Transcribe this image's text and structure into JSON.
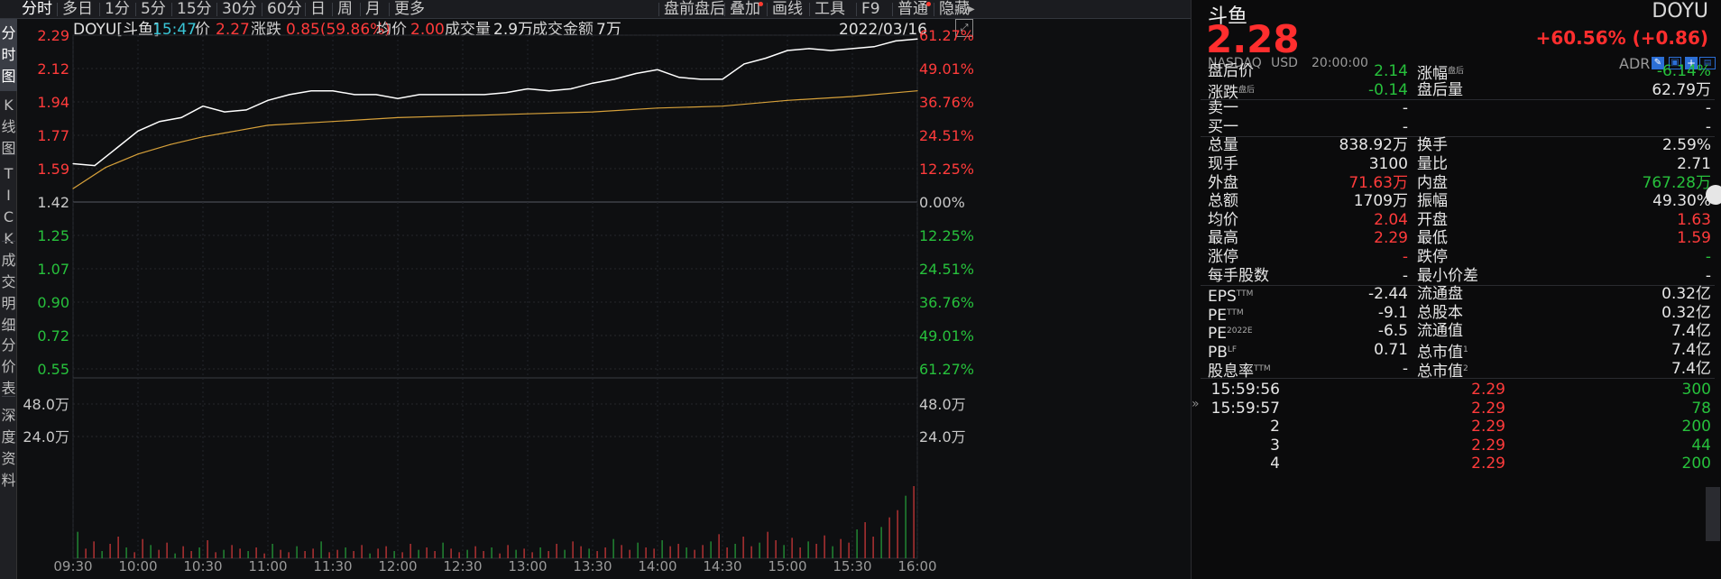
{
  "toolbar": {
    "tabs": [
      "分时",
      "多日",
      "1分",
      "5分",
      "15分",
      "30分",
      "60分",
      "日",
      "周",
      "月",
      "更多"
    ],
    "right_buttons": [
      "盘前盘后",
      "叠加",
      "画线",
      "工具",
      "F9",
      "普通",
      "隐藏"
    ]
  },
  "leftnav": {
    "groups": [
      {
        "label": "分\n时\n图",
        "active": true
      },
      {
        "label": "K\n线\n图",
        "active": false
      },
      {
        "label": "T\nI\nC\nK",
        "active": false
      },
      {
        "label": "成\n交\n明\n细",
        "active": false
      },
      {
        "label": "分\n价\n表",
        "active": false
      },
      {
        "label": "深\n度\n资\n料",
        "active": false
      }
    ]
  },
  "chart_header": {
    "symbol": "DOYU[斗鱼]",
    "time": "15:47",
    "price_label": "价",
    "price": "2.27",
    "change_label": "涨跌",
    "change": "0.85(59.86%)",
    "avg_label": "均价",
    "avg": "2.00",
    "volume_label": "成交量",
    "volume": "2.9万",
    "amount_label": "成交金额",
    "amount": "7万",
    "date": "2022/03/16"
  },
  "chart_data": {
    "type": "line",
    "price_axis_left": [
      "2.29",
      "2.12",
      "1.94",
      "1.77",
      "1.59",
      "1.42",
      "1.25",
      "1.07",
      "0.90",
      "0.72",
      "0.55"
    ],
    "pct_axis_right": [
      "61.27%",
      "49.01%",
      "36.76%",
      "24.51%",
      "12.25%",
      "0.00%",
      "12.25%",
      "24.51%",
      "36.76%",
      "49.01%",
      "61.27%"
    ],
    "volume_axis": [
      "48.0万",
      "24.0万"
    ],
    "x_ticks": [
      "09:30",
      "10:00",
      "10:30",
      "11:00",
      "11:30",
      "12:00",
      "12:30",
      "13:00",
      "13:30",
      "14:00",
      "14:30",
      "15:00",
      "15:30",
      "16:00"
    ],
    "ylim": [
      0.55,
      2.29
    ],
    "prev_close": 1.42,
    "series": [
      {
        "color": "#ffffff",
        "x": [
          "09:30",
          "09:40",
          "09:50",
          "10:00",
          "10:10",
          "10:20",
          "10:30",
          "10:40",
          "10:50",
          "11:00",
          "11:10",
          "11:20",
          "11:30",
          "11:40",
          "11:50",
          "12:00",
          "12:10",
          "12:20",
          "12:30",
          "12:40",
          "12:50",
          "13:00",
          "13:10",
          "13:20",
          "13:30",
          "13:40",
          "13:50",
          "14:00",
          "14:10",
          "14:20",
          "14:30",
          "14:40",
          "14:50",
          "15:00",
          "15:10",
          "15:20",
          "15:30",
          "15:40",
          "15:50",
          "16:00"
        ],
        "values": [
          1.62,
          1.61,
          1.7,
          1.79,
          1.84,
          1.86,
          1.92,
          1.89,
          1.9,
          1.95,
          1.98,
          2.0,
          2.0,
          1.98,
          1.98,
          1.96,
          1.98,
          1.98,
          1.98,
          1.98,
          1.99,
          2.01,
          2.0,
          2.01,
          2.04,
          2.06,
          2.09,
          2.11,
          2.07,
          2.06,
          2.06,
          2.14,
          2.17,
          2.21,
          2.22,
          2.21,
          2.22,
          2.23,
          2.26,
          2.27
        ]
      },
      {
        "color": "#d7a13a",
        "x": [
          "09:30",
          "09:45",
          "10:00",
          "10:15",
          "10:30",
          "10:45",
          "11:00",
          "11:30",
          "12:00",
          "12:30",
          "13:00",
          "13:30",
          "14:00",
          "14:30",
          "15:00",
          "15:30",
          "16:00"
        ],
        "values": [
          1.49,
          1.6,
          1.67,
          1.72,
          1.76,
          1.79,
          1.82,
          1.84,
          1.86,
          1.87,
          1.88,
          1.89,
          1.91,
          1.92,
          1.95,
          1.97,
          2.0
        ]
      }
    ],
    "volume_bars": [
      22,
      8,
      14,
      6,
      12,
      18,
      9,
      5,
      16,
      11,
      7,
      13,
      4,
      10,
      6,
      9,
      15,
      5,
      7,
      11,
      8,
      6,
      9,
      4,
      12,
      7,
      5,
      10,
      6,
      8,
      14,
      5,
      7,
      9,
      6,
      11,
      4,
      8,
      10,
      6,
      5,
      12,
      7,
      9,
      6,
      13,
      8,
      5,
      7,
      10,
      6,
      9,
      4,
      11,
      7,
      8,
      5,
      9,
      6,
      12,
      7,
      14,
      10,
      8,
      6,
      9,
      16,
      11,
      7,
      13,
      9,
      8,
      15,
      10,
      12,
      9,
      7,
      11,
      14,
      20,
      9,
      12,
      18,
      10,
      13,
      22,
      15,
      11,
      17,
      9,
      14,
      12,
      19,
      10,
      16,
      13,
      24,
      30,
      18,
      26,
      34,
      40,
      52,
      60
    ]
  },
  "quote": {
    "name": "斗鱼",
    "code": "DOYU",
    "price": "2.28",
    "change": "+60.56% (+0.86)",
    "exchange": "NASDAQ",
    "currency": "USD",
    "time": "20:00:00",
    "adr": "ADR"
  },
  "stats": [
    {
      "l1": "盘后价",
      "v1": "2.14",
      "c1": "dn",
      "l2": "涨幅",
      "s2": "盘后",
      "v2": "-6.14%",
      "c2": "dn"
    },
    {
      "l1": "涨跌",
      "s1": "盘后",
      "v1": "-0.14",
      "c1": "dn",
      "l2": "盘后量",
      "v2": "62.79万",
      "c2": "wh"
    },
    {
      "l1": "卖一",
      "v1": "-",
      "c1": "wh",
      "l2": "",
      "v2": "-",
      "c2": "wh"
    },
    {
      "l1": "买一",
      "v1": "-",
      "c1": "wh",
      "l2": "",
      "v2": "-",
      "c2": "wh"
    },
    {
      "l1": "总量",
      "v1": "838.92万",
      "c1": "wh",
      "l2": "换手",
      "v2": "2.59%",
      "c2": "wh"
    },
    {
      "l1": "现手",
      "v1": "3100",
      "c1": "wh",
      "l2": "量比",
      "v2": "2.71",
      "c2": "wh"
    },
    {
      "l1": "外盘",
      "v1": "71.63万",
      "c1": "up",
      "l2": "内盘",
      "v2": "767.28万",
      "c2": "dn"
    },
    {
      "l1": "总额",
      "v1": "1709万",
      "c1": "wh",
      "l2": "振幅",
      "v2": "49.30%",
      "c2": "wh"
    },
    {
      "l1": "均价",
      "v1": "2.04",
      "c1": "up",
      "l2": "开盘",
      "v2": "1.63",
      "c2": "up"
    },
    {
      "l1": "最高",
      "v1": "2.29",
      "c1": "up",
      "l2": "最低",
      "v2": "1.59",
      "c2": "up"
    },
    {
      "l1": "涨停",
      "v1": "-",
      "c1": "up",
      "l2": "跌停",
      "v2": "-",
      "c2": "dn"
    },
    {
      "l1": "每手股数",
      "v1": "-",
      "c1": "wh",
      "l2": "最小价差",
      "v2": "-",
      "c2": "wh"
    },
    {
      "l1": "EPS",
      "s1": "TTM",
      "v1": "-2.44",
      "c1": "wh",
      "l2": "流通盘",
      "v2": "0.32亿",
      "c2": "wh"
    },
    {
      "l1": "PE",
      "s1": "TTM",
      "v1": "-9.1",
      "c1": "wh",
      "l2": "总股本",
      "v2": "0.32亿",
      "c2": "wh"
    },
    {
      "l1": "PE",
      "s1": "2022E",
      "v1": "-6.5",
      "c1": "wh",
      "l2": "流通值",
      "v2": "7.4亿",
      "c2": "wh"
    },
    {
      "l1": "PB",
      "s1": "LF",
      "v1": "0.71",
      "c1": "wh",
      "l2": "总市值",
      "s2": "1",
      "v2": "7.4亿",
      "c2": "wh"
    },
    {
      "l1": "股息率",
      "s1": "TTM",
      "v1": "-",
      "c1": "wh",
      "l2": "总市值",
      "s2": "2",
      "v2": "7.4亿",
      "c2": "wh"
    }
  ],
  "trades": [
    {
      "time": "15:59:56",
      "price": "2.29",
      "vol": "300"
    },
    {
      "time": "15:59:57",
      "price": "2.29",
      "vol": "78"
    },
    {
      "time": "2",
      "price": "2.29",
      "vol": "200"
    },
    {
      "time": "3",
      "price": "2.29",
      "vol": "44"
    },
    {
      "time": "4",
      "price": "2.29",
      "vol": "200"
    }
  ],
  "colors": {
    "up": "#ff3b3b",
    "down": "#27c13c",
    "price_line": "#ffffff",
    "avg_line": "#d7a13a",
    "cyan": "#39c5d6"
  }
}
